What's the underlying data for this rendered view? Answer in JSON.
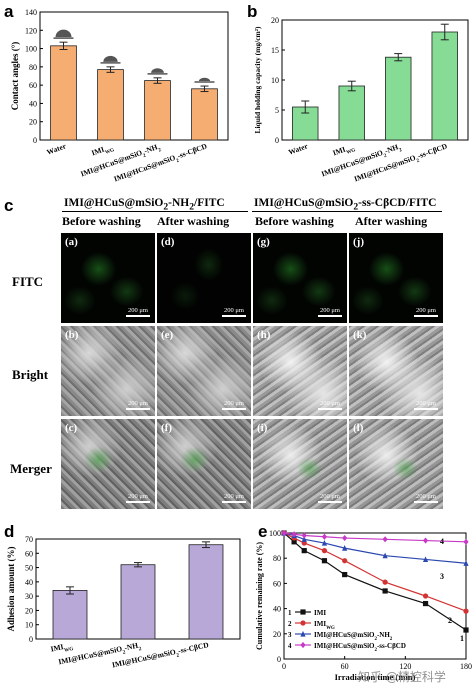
{
  "panels": {
    "a": "a",
    "b": "b",
    "c": "c",
    "d": "d",
    "e": "e"
  },
  "chart_data": [
    {
      "id": "a",
      "type": "bar",
      "categories": [
        "Water",
        "IMI_WG",
        "IMI@HCuS@mSiO2-NH2",
        "IMI@HCuS@mSiO2-ss-CβCD"
      ],
      "category_labels": [
        {
          "main": "Water",
          "sub": ""
        },
        {
          "main": "IMI",
          "sub": "WG"
        },
        {
          "main": "IMI@HCuS@mSiO",
          "sub": "2",
          "tail": "-NH",
          "sub2": "2"
        },
        {
          "main": "IMI@HCuS@mSiO",
          "sub": "2",
          "tail": "-ss-CβCD",
          "sub2": ""
        }
      ],
      "values": [
        103,
        77,
        65,
        56
      ],
      "errors": [
        4,
        3,
        3,
        3
      ],
      "ylabel": "Contact angles (°)",
      "ylim": [
        0,
        140
      ],
      "yticks": [
        "0",
        "20",
        "40",
        "60",
        "80",
        "100",
        "120",
        "140"
      ],
      "bar_color": "#f6ad72"
    },
    {
      "id": "b",
      "type": "bar",
      "categories": [
        "Water",
        "IMI_WG",
        "IMI@HCuS@mSiO2-NH2",
        "IMI@HCuS@mSiO2-ss-CβCD"
      ],
      "category_labels": [
        {
          "main": "Water",
          "sub": ""
        },
        {
          "main": "IMI",
          "sub": "WG"
        },
        {
          "main": "IMI@HCuS@mSiO",
          "sub": "2",
          "tail": "-NH",
          "sub2": "2"
        },
        {
          "main": "IMI@HCuS@mSiO",
          "sub": "2",
          "tail": "-ss-CβCD",
          "sub2": ""
        }
      ],
      "values": [
        5.5,
        9.0,
        13.8,
        18.0
      ],
      "errors": [
        1.0,
        0.8,
        0.6,
        1.3
      ],
      "ylabel": "Liquid holding capacity (mg/cm²)",
      "ylim": [
        0,
        20
      ],
      "yticks": [
        "0",
        "5",
        "10",
        "15",
        "20"
      ],
      "bar_color": "#86dc95"
    },
    {
      "id": "d",
      "type": "bar",
      "categories": [
        "IMI_WG",
        "IMI@HCuS@mSiO2-NH2",
        "IMI@HCuS@mSiO2-ss-CβCD"
      ],
      "category_labels": [
        {
          "main": "IMI",
          "sub": "WG"
        },
        {
          "main": "IMI@HCuS@mSiO",
          "sub": "2",
          "tail": "-NH",
          "sub2": "2"
        },
        {
          "main": "IMI@HCuS@mSiO",
          "sub": "2",
          "tail": "-ss-CβCD",
          "sub2": ""
        }
      ],
      "values": [
        34,
        52,
        66
      ],
      "errors": [
        2.5,
        1.5,
        2
      ],
      "ylabel": "Adhesion amount (%)",
      "ylim": [
        0,
        70
      ],
      "yticks": [
        "0",
        "10",
        "20",
        "30",
        "40",
        "50",
        "60",
        "70"
      ],
      "bar_color": "#b8a8d8"
    },
    {
      "id": "e",
      "type": "line",
      "x": [
        0,
        10,
        20,
        40,
        60,
        100,
        140,
        180
      ],
      "series": [
        {
          "name": "IMI",
          "num": "1",
          "color": "#111111",
          "marker": "square",
          "values": [
            100,
            93,
            86,
            78,
            67,
            54,
            44,
            23
          ]
        },
        {
          "name": "IMI_WG",
          "num": "2",
          "color": "#d33333",
          "marker": "circle",
          "values": [
            100,
            96,
            92,
            86,
            78,
            61,
            50,
            38
          ]
        },
        {
          "name": "IMI@HCuS@mSiO2-NH2",
          "num": "3",
          "color": "#2b48b0",
          "marker": "triangle",
          "values": [
            100,
            98,
            95,
            92,
            88,
            82,
            79,
            76
          ]
        },
        {
          "name": "IMI@HCuS@mSiO2-ss-CβCD",
          "num": "4",
          "color": "#c73ac7",
          "marker": "diamond",
          "values": [
            100,
            99,
            98,
            97,
            96,
            95,
            94,
            93
          ]
        }
      ],
      "legend": [
        {
          "num": "1",
          "main": "IMI",
          "sub": "",
          "tail": "",
          "sub2": ""
        },
        {
          "num": "2",
          "main": "IMI",
          "sub": "WG",
          "tail": "",
          "sub2": ""
        },
        {
          "num": "3",
          "main": "IMI@HCuS@mSiO",
          "sub": "2",
          "tail": "-NH",
          "sub2": "2"
        },
        {
          "num": "4",
          "main": "IMI@HCuS@mSiO",
          "sub": "2",
          "tail": "-ss-CβCD",
          "sub2": ""
        }
      ],
      "xlabel": "Irradiation time (min)",
      "ylabel": "Cumulative remaining rate (%)",
      "xlim": [
        0,
        180
      ],
      "ylim": [
        0,
        100
      ],
      "xticks": [
        "0",
        "60",
        "120",
        "180"
      ],
      "yticks": [
        "0",
        "20",
        "40",
        "60",
        "80",
        "100"
      ],
      "legend_position": "bottom-left"
    }
  ],
  "panel_c": {
    "group_titles": [
      "IMI@HCuS@mSiO2-NH2/FITC",
      "IMI@HCuS@mSiO2-ss-CβCD/FITC"
    ],
    "group_title_parts": [
      {
        "main": "IMI@HCuS@mSiO",
        "sub": "2",
        "tail": "-NH",
        "sub2": "2",
        "end": "/FITC"
      },
      {
        "main": "IMI@HCuS@mSiO",
        "sub": "2",
        "tail": "-ss-CβCD",
        "sub2": "",
        "end": "/FITC"
      }
    ],
    "columns": [
      "Before washing",
      "After washing",
      "Before washing",
      "After washing"
    ],
    "rows": [
      "FITC",
      "Bright",
      "Merger"
    ],
    "tile_labels": [
      [
        "(a)",
        "(d)",
        "(g)",
        "(j)"
      ],
      [
        "(b)",
        "(e)",
        "(h)",
        "(k)"
      ],
      [
        "(c)",
        "(f)",
        "(i)",
        "(l)"
      ]
    ],
    "scale_bar": "200 μm"
  },
  "watermark": "知乎 @精控科学"
}
